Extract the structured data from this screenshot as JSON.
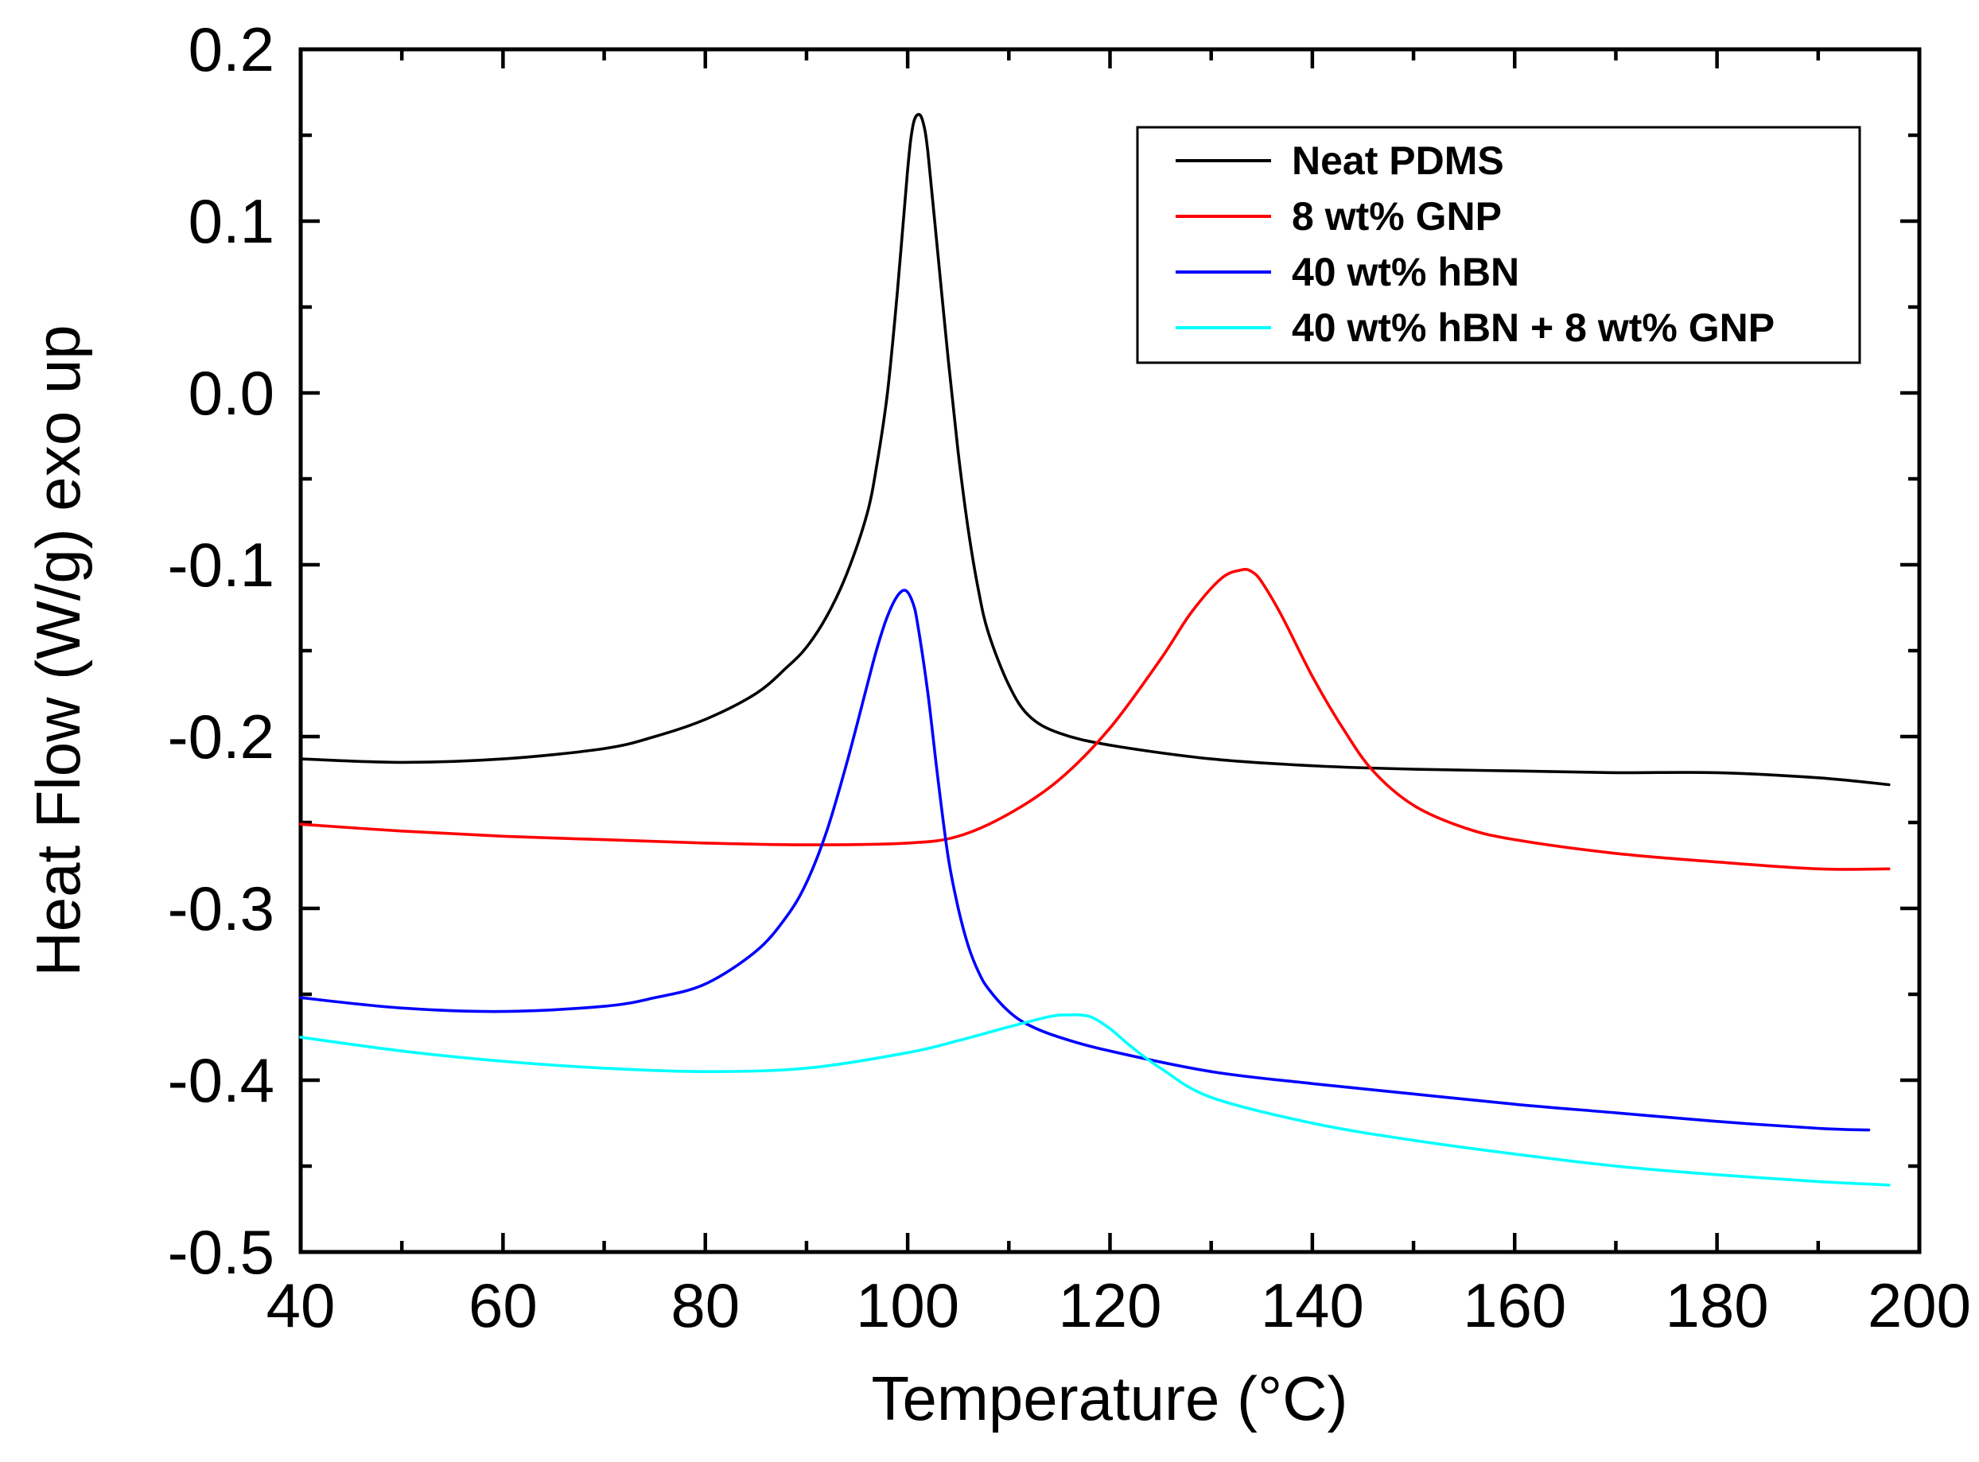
{
  "chart_data": {
    "type": "line",
    "title": "",
    "xlabel": "Temperature (°C)",
    "ylabel": "Heat Flow (W/g) exo up",
    "xlim": [
      40,
      200
    ],
    "ylim": [
      -0.5,
      0.2
    ],
    "xticks": [
      40,
      60,
      80,
      100,
      120,
      140,
      160,
      180,
      200
    ],
    "xtick_labels": [
      "40",
      "60",
      "80",
      "100",
      "120",
      "140",
      "160",
      "180",
      "200"
    ],
    "yticks": [
      -0.5,
      -0.4,
      -0.3,
      -0.2,
      -0.1,
      0.0,
      0.1,
      0.2
    ],
    "ytick_labels": [
      "-0.5",
      "-0.4",
      "-0.3",
      "-0.2",
      "-0.1",
      "0.0",
      "0.1",
      "0.2"
    ],
    "x_minor_step": 10,
    "y_minor_step": 0.05,
    "grid": false,
    "legend_position": "top-right",
    "series": [
      {
        "name": "Neat PDMS",
        "color": "#000000",
        "x": [
          40,
          50,
          60,
          70,
          75,
          80,
          85,
          88,
          90,
          92,
          94,
          96,
          97,
          98,
          99,
          100,
          100.5,
          101,
          101.5,
          102,
          103,
          104,
          105,
          106,
          107,
          108,
          110,
          112,
          115,
          120,
          130,
          140,
          150,
          160,
          170,
          180,
          190,
          197
        ],
        "values": [
          -0.213,
          -0.215,
          -0.213,
          -0.207,
          -0.2,
          -0.19,
          -0.175,
          -0.16,
          -0.148,
          -0.13,
          -0.105,
          -0.07,
          -0.04,
          0.0,
          0.06,
          0.13,
          0.155,
          0.162,
          0.158,
          0.14,
          0.08,
          0.02,
          -0.035,
          -0.08,
          -0.115,
          -0.14,
          -0.17,
          -0.188,
          -0.198,
          -0.205,
          -0.213,
          -0.217,
          -0.219,
          -0.22,
          -0.221,
          -0.221,
          -0.224,
          -0.228
        ]
      },
      {
        "name": "8 wt% GNP",
        "color": "#ff0000",
        "x": [
          40,
          50,
          60,
          70,
          80,
          90,
          100,
          105,
          110,
          115,
          120,
          125,
          128,
          131,
          133,
          134,
          135,
          137,
          140,
          143,
          146,
          150,
          155,
          160,
          170,
          180,
          190,
          197
        ],
        "values": [
          -0.251,
          -0.255,
          -0.258,
          -0.26,
          -0.262,
          -0.263,
          -0.262,
          -0.258,
          -0.245,
          -0.225,
          -0.195,
          -0.155,
          -0.128,
          -0.108,
          -0.103,
          -0.104,
          -0.11,
          -0.13,
          -0.165,
          -0.195,
          -0.22,
          -0.24,
          -0.253,
          -0.26,
          -0.268,
          -0.273,
          -0.277,
          -0.277
        ]
      },
      {
        "name": "40 wt% hBN",
        "color": "#0000ff",
        "x": [
          40,
          50,
          60,
          70,
          75,
          80,
          85,
          88,
          90,
          92,
          94,
          96,
          97,
          98,
          99,
          99.8,
          100.5,
          101,
          102,
          103,
          104,
          105,
          106,
          107,
          108,
          110,
          112,
          115,
          120,
          130,
          140,
          150,
          160,
          170,
          180,
          190,
          195
        ],
        "values": [
          -0.352,
          -0.358,
          -0.36,
          -0.357,
          -0.352,
          -0.344,
          -0.325,
          -0.305,
          -0.285,
          -0.255,
          -0.215,
          -0.17,
          -0.148,
          -0.13,
          -0.118,
          -0.115,
          -0.122,
          -0.135,
          -0.175,
          -0.225,
          -0.27,
          -0.3,
          -0.322,
          -0.337,
          -0.347,
          -0.36,
          -0.368,
          -0.375,
          -0.383,
          -0.395,
          -0.402,
          -0.408,
          -0.414,
          -0.419,
          -0.424,
          -0.428,
          -0.429
        ]
      },
      {
        "name": "40 wt% hBN + 8 wt% GNP",
        "color": "#00ffff",
        "x": [
          40,
          50,
          60,
          70,
          80,
          90,
          100,
          105,
          110,
          114,
          116,
          118,
          120,
          122,
          125,
          130,
          140,
          150,
          160,
          170,
          180,
          190,
          197
        ],
        "values": [
          -0.375,
          -0.383,
          -0.389,
          -0.393,
          -0.395,
          -0.393,
          -0.384,
          -0.377,
          -0.369,
          -0.363,
          -0.362,
          -0.363,
          -0.37,
          -0.38,
          -0.393,
          -0.41,
          -0.425,
          -0.435,
          -0.443,
          -0.45,
          -0.455,
          -0.459,
          -0.461
        ]
      }
    ]
  }
}
